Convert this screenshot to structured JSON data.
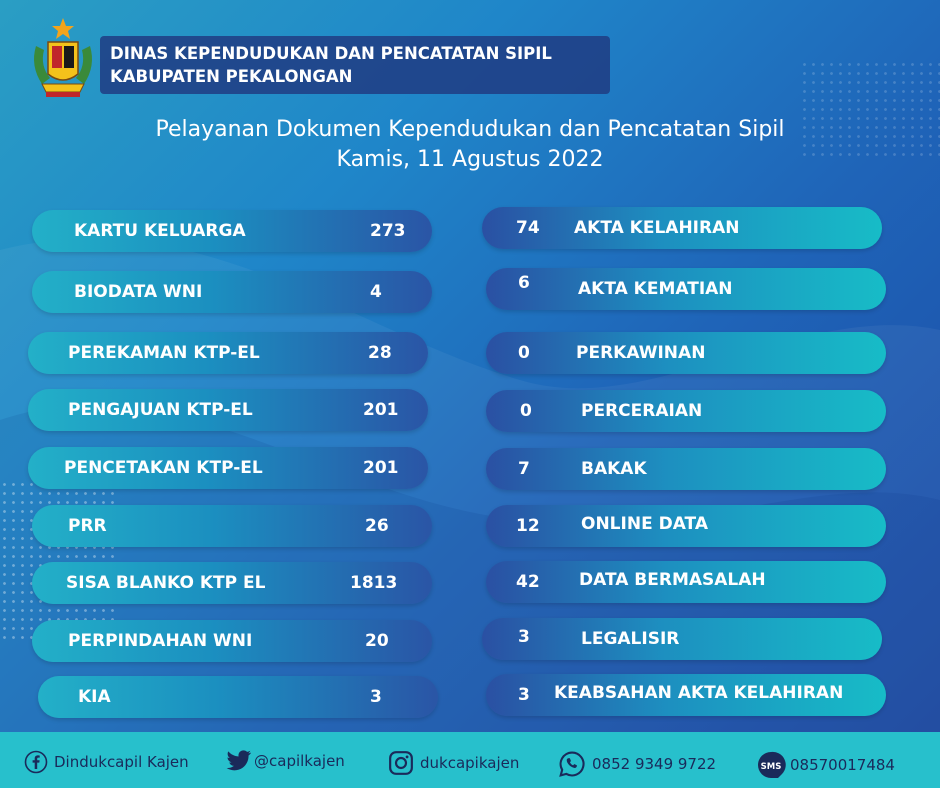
{
  "header": {
    "org_line1": "DINAS KEPENDUDUKAN DAN PENCATATAN SIPIL",
    "org_line2": "KABUPATEN PEKALONGAN",
    "logo_icon": "kabupaten-pekalongan-emblem"
  },
  "title": {
    "line1": "Pelayanan Dokumen Kependudukan dan Pencatatan Sipil",
    "line2": "Kamis,  11 Agustus 2022"
  },
  "left_items": [
    {
      "label": "KARTU KELUARGA",
      "value": "273"
    },
    {
      "label": "BIODATA WNI",
      "value": "4"
    },
    {
      "label": "PEREKAMAN KTP-EL",
      "value": "28"
    },
    {
      "label": "PENGAJUAN KTP-EL",
      "value": "201"
    },
    {
      "label": "PENCETAKAN KTP-EL",
      "value": "201"
    },
    {
      "label": "PRR",
      "value": "26"
    },
    {
      "label": "SISA BLANKO KTP EL",
      "value": "1813"
    },
    {
      "label": "PERPINDAHAN WNI",
      "value": "20"
    },
    {
      "label": "KIA",
      "value": "3"
    }
  ],
  "right_items": [
    {
      "label": "AKTA KELAHIRAN",
      "value": "74"
    },
    {
      "label": "AKTA KEMATIAN",
      "value": "6"
    },
    {
      "label": "PERKAWINAN",
      "value": "0"
    },
    {
      "label": "PERCERAIAN",
      "value": "0"
    },
    {
      "label": "BAKAK",
      "value": "7"
    },
    {
      "label": "ONLINE DATA",
      "value": "12"
    },
    {
      "label": "DATA BERMASALAH",
      "value": "42"
    },
    {
      "label": "LEGALISIR",
      "value": "3"
    },
    {
      "label": "KEABSAHAN AKTA KELAHIRAN",
      "value": "3"
    }
  ],
  "footer": {
    "facebook": "Dindukcapil Kajen",
    "twitter": "@capilkajen",
    "instagram": "dukcapikajen",
    "whatsapp": "0852 9349 9722",
    "sms": "08570017484",
    "sms_badge": "SMS"
  },
  "colors": {
    "footer_bg": "#27c0cc",
    "pill_teal": "#17bcc7",
    "pill_blue": "#2a50a3",
    "org_box": "#203c82"
  }
}
